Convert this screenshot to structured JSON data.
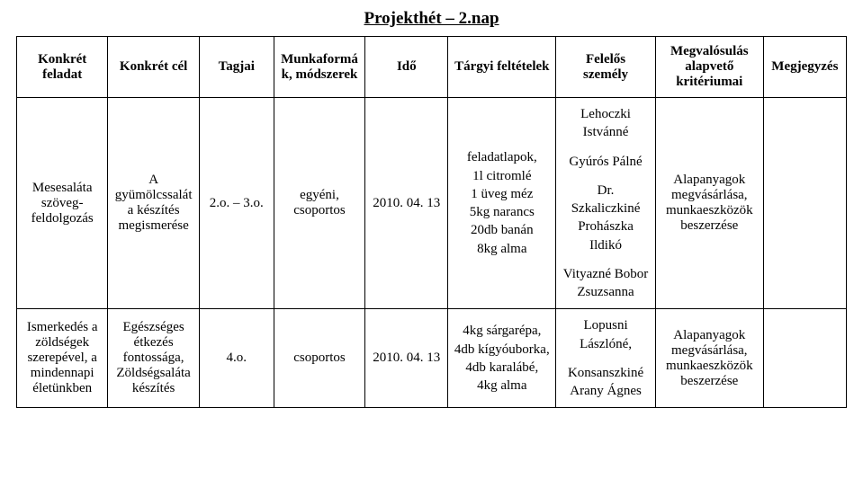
{
  "title": "Projekthét – 2.nap",
  "columns": {
    "task": "Konkrét feladat",
    "goal": "Konkrét cél",
    "members": "Tagjai",
    "methods": "Munkaformák, módszerek",
    "time": "Idő",
    "requirements": "Tárgyi feltételek",
    "responsible": "Felelős személy",
    "criteria": "Megvalósulás alapvető kritériumai",
    "note": "Megjegyzés"
  },
  "rows": [
    {
      "task": "Mesesaláta szöveg-feldolgozás",
      "goal": "A gyümölcssaláta készítés megismerése",
      "members": "2.o. – 3.o.",
      "methods": "egyéni, csoportos",
      "time": "2010. 04. 13",
      "requirements": "feladatlapok,\n1l citromlé\n1 üveg méz\n5kg narancs\n20db banán\n8kg alma",
      "responsible": "Lehoczki Istvánné\n\nGyúrós Pálné\n\nDr. Szkaliczkiné Prohászka Ildikó\n\nVityazné Bobor Zsuzsanna",
      "criteria": "Alapanyagok megvásárlása, munkaeszközök beszerzése",
      "note": ""
    },
    {
      "task": "Ismerkedés a zöldségek szerepével, a mindennapi életünkben",
      "goal": "Egészséges étkezés fontossága, Zöldségsaláta készítés",
      "members": "4.o.",
      "methods": "csoportos",
      "time": "2010. 04. 13",
      "requirements": "4kg sárgarépa,\n4db kígyóuborka,\n4db karalábé,\n4kg alma",
      "responsible": "Lopusni Lászlóné,\n\nKonsanszkiné Arany Ágnes",
      "criteria": "Alapanyagok megvásárlása, munkaeszközök beszerzése",
      "note": ""
    }
  ],
  "style": {
    "font_family": "Times New Roman",
    "title_fontsize": 19,
    "body_fontsize": 15,
    "border_color": "#000000",
    "background_color": "#ffffff",
    "text_color": "#000000",
    "col_widths_pct": [
      11,
      11,
      9,
      11,
      10,
      13,
      12,
      13,
      10
    ]
  }
}
